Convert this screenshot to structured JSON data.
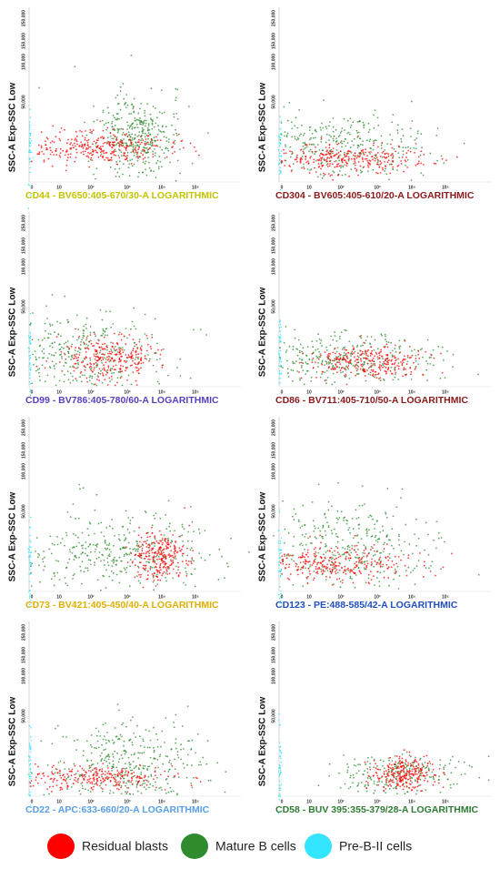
{
  "panels": [
    {
      "y_label": "SSC-A Exp-SSC Low",
      "x_label": "CD44 - BV650:405-670/30-A LOGARITHMIC",
      "x_label_color": "#c4c400"
    },
    {
      "y_label": "SSC-A Exp-SSC Low",
      "x_label": "CD304 - BV605:405-610/20-A LOGARITHMIC",
      "x_label_color": "#8b1a1a"
    },
    {
      "y_label": "SSC-A Exp-SSC Low",
      "x_label": "CD99 - BV786:405-780/60-A LOGARITHMIC",
      "x_label_color": "#5a3fbf"
    },
    {
      "y_label": "SSC-A Exp-SSC Low",
      "x_label": "CD86 - BV711:405-710/50-A LOGARITHMIC",
      "x_label_color": "#8b1a1a"
    },
    {
      "y_label": "SSC-A Exp-SSC Low",
      "x_label": "CD73 - BV421:405-450/40-A LOGARITHMIC",
      "x_label_color": "#e0b000"
    },
    {
      "y_label": "SSC-A Exp-SSC Low",
      "x_label": "CD123 - PE:488-585/42-A LOGARITHMIC",
      "x_label_color": "#1f4fbf"
    },
    {
      "y_label": "SSC-A Exp-SSC Low",
      "x_label": "CD22 - APC:633-660/20-A LOGARITHMIC",
      "x_label_color": "#5aa0e6"
    },
    {
      "y_label": "SSC-A Exp-SSC Low",
      "x_label": "CD58 - BUV 395:355-379/28-A LOGARITHMIC",
      "x_label_color": "#2e7d32"
    }
  ],
  "y_ticks": [
    "250,000",
    "150,000",
    "100,000",
    "50,000"
  ],
  "x_ticks": [
    "0",
    "10",
    "10²",
    "10³",
    "10⁴",
    "10⁵"
  ],
  "legend": [
    {
      "label": "Residual blasts",
      "color": "#ff0000"
    },
    {
      "label": "Mature B cells",
      "color": "#2e8b2e"
    },
    {
      "label": "Pre-B-II cells",
      "color": "#33e5ff"
    }
  ]
}
